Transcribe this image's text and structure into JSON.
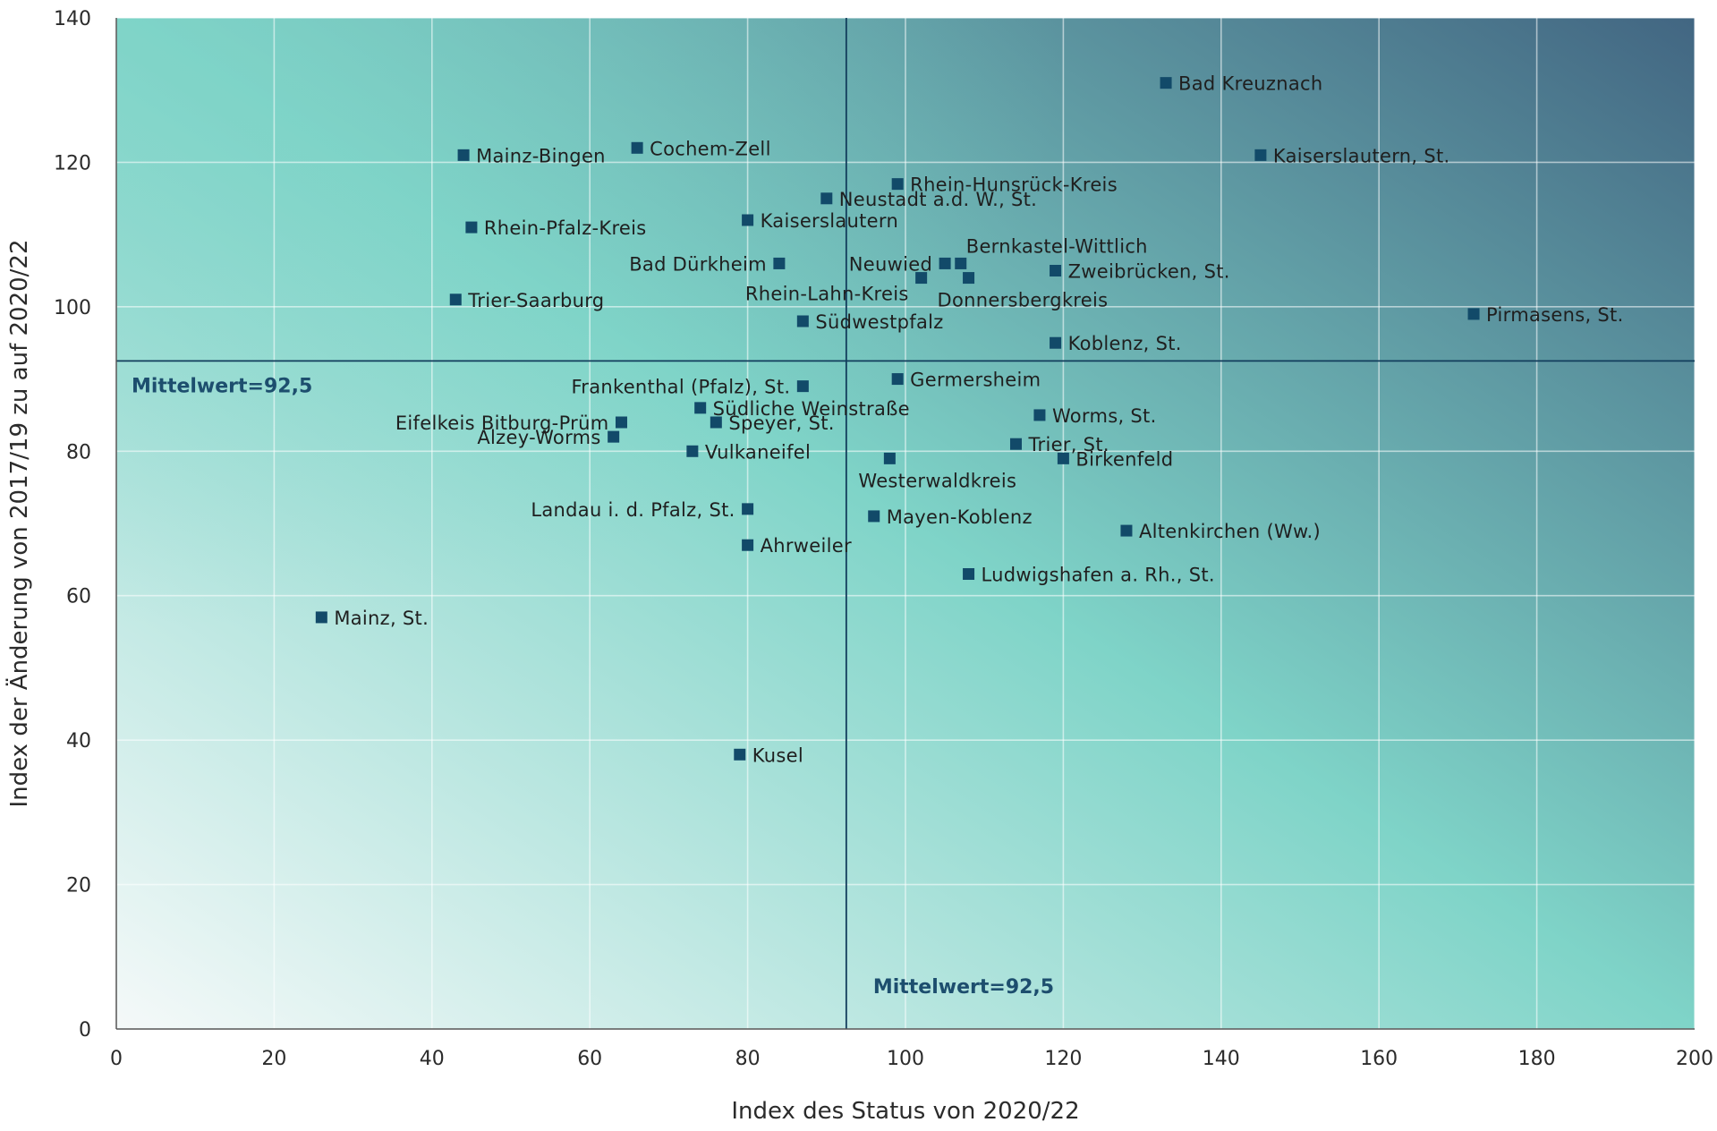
{
  "chart_data": {
    "type": "scatter",
    "xlabel": "Index des Status von 2020/22",
    "ylabel": "Index der Änderung von 2017/19 zu auf 2020/22",
    "xlim": [
      0,
      200
    ],
    "ylim": [
      0,
      140
    ],
    "xticks": [
      0,
      20,
      40,
      60,
      80,
      100,
      120,
      140,
      160,
      180,
      200
    ],
    "yticks": [
      0,
      20,
      40,
      60,
      80,
      100,
      120,
      140
    ],
    "grid": true,
    "reference_lines": [
      {
        "axis": "x",
        "value": 92.5,
        "label": "Mittelwert=92,5"
      },
      {
        "axis": "y",
        "value": 92.5,
        "label": "Mittelwert=92,5"
      }
    ],
    "colors": {
      "marker": "#124a69",
      "mean_line": "#123d5c",
      "mean_label": "#1d4e6e",
      "background_light": "#f5f9f9",
      "background_teal": "#7fd4c8",
      "background_dark": "#426682"
    },
    "points": [
      {
        "label": "Bad Kreuznach",
        "x": 133,
        "y": 131,
        "label_side": "right"
      },
      {
        "label": "Kaiserslautern, St.",
        "x": 145,
        "y": 121,
        "label_side": "right"
      },
      {
        "label": "Cochem-Zell",
        "x": 66,
        "y": 122,
        "label_side": "right"
      },
      {
        "label": "Mainz-Bingen",
        "x": 44,
        "y": 121,
        "label_side": "right"
      },
      {
        "label": "Rhein-Hunsrück-Kreis",
        "x": 99,
        "y": 117,
        "label_side": "right"
      },
      {
        "label": "Neustadt a.d. W., St.",
        "x": 90,
        "y": 115,
        "label_side": "right"
      },
      {
        "label": "Kaiserslautern",
        "x": 80,
        "y": 112,
        "label_side": "right"
      },
      {
        "label": "Rhein-Pfalz-Kreis",
        "x": 45,
        "y": 111,
        "label_side": "right"
      },
      {
        "label": "Bad Dürkheim",
        "x": 84,
        "y": 106,
        "label_side": "left"
      },
      {
        "label": "Neuwied",
        "x": 105,
        "y": 106,
        "label_side": "left"
      },
      {
        "label": "Bernkastel-Wittlich",
        "x": 107,
        "y": 106,
        "label_side": "above-right"
      },
      {
        "label": "Rhein-Lahn-Kreis",
        "x": 102,
        "y": 104,
        "label_side": "below-left"
      },
      {
        "label": "Donnersbergkreis",
        "x": 108,
        "y": 104,
        "label_side": "below"
      },
      {
        "label": "Zweibrücken, St.",
        "x": 119,
        "y": 105,
        "label_side": "right"
      },
      {
        "label": "Trier-Saarburg",
        "x": 43,
        "y": 101,
        "label_side": "right"
      },
      {
        "label": "Pirmasens, St.",
        "x": 172,
        "y": 99,
        "label_side": "right"
      },
      {
        "label": "Südwestpfalz",
        "x": 87,
        "y": 98,
        "label_side": "right"
      },
      {
        "label": "Koblenz, St.",
        "x": 119,
        "y": 95,
        "label_side": "right"
      },
      {
        "label": "Germersheim",
        "x": 99,
        "y": 90,
        "label_side": "right"
      },
      {
        "label": "Frankenthal (Pfalz), St.",
        "x": 87,
        "y": 89,
        "label_side": "left"
      },
      {
        "label": "Südliche Weinstraße",
        "x": 74,
        "y": 86,
        "label_side": "right"
      },
      {
        "label": "Worms, St.",
        "x": 117,
        "y": 85,
        "label_side": "right"
      },
      {
        "label": "Eifelkeis Bitburg-Prüm",
        "x": 64,
        "y": 84,
        "label_side": "left"
      },
      {
        "label": "Speyer, St.",
        "x": 76,
        "y": 84,
        "label_side": "right"
      },
      {
        "label": "Alzey-Worms",
        "x": 63,
        "y": 82,
        "label_side": "left"
      },
      {
        "label": "Trier, St.",
        "x": 114,
        "y": 81,
        "label_side": "right"
      },
      {
        "label": "Vulkaneifel",
        "x": 73,
        "y": 80,
        "label_side": "right"
      },
      {
        "label": "Birkenfeld",
        "x": 120,
        "y": 79,
        "label_side": "right"
      },
      {
        "label": "Westerwaldkreis",
        "x": 98,
        "y": 79,
        "label_side": "below"
      },
      {
        "label": "Landau i. d. Pfalz, St.",
        "x": 80,
        "y": 72,
        "label_side": "left"
      },
      {
        "label": "Mayen-Koblenz",
        "x": 96,
        "y": 71,
        "label_side": "right"
      },
      {
        "label": "Altenkirchen (Ww.)",
        "x": 128,
        "y": 69,
        "label_side": "right"
      },
      {
        "label": "Ahrweiler",
        "x": 80,
        "y": 67,
        "label_side": "right"
      },
      {
        "label": "Ludwigshafen a. Rh., St.",
        "x": 108,
        "y": 63,
        "label_side": "right"
      },
      {
        "label": "Mainz, St.",
        "x": 26,
        "y": 57,
        "label_side": "right"
      },
      {
        "label": "Kusel",
        "x": 79,
        "y": 38,
        "label_side": "right"
      }
    ]
  }
}
